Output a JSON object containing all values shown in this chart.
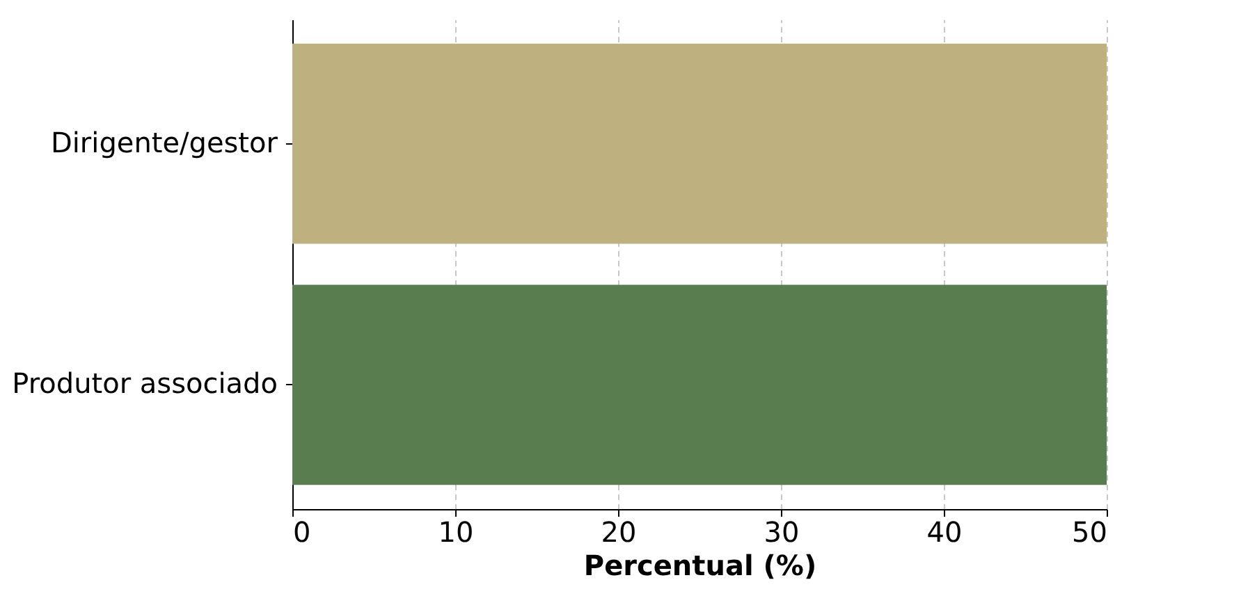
{
  "chart_data": {
    "type": "bar",
    "orientation": "horizontal",
    "categories": [
      "Dirigente/gestor",
      "Produtor associado"
    ],
    "values": [
      50,
      50
    ],
    "colors": [
      "#bfb17f",
      "#5a7d4f"
    ],
    "xlabel": "Percentual (%)",
    "xlim": [
      0,
      50
    ],
    "xticks": [
      0,
      10,
      20,
      30,
      40,
      50
    ],
    "grid": true
  }
}
